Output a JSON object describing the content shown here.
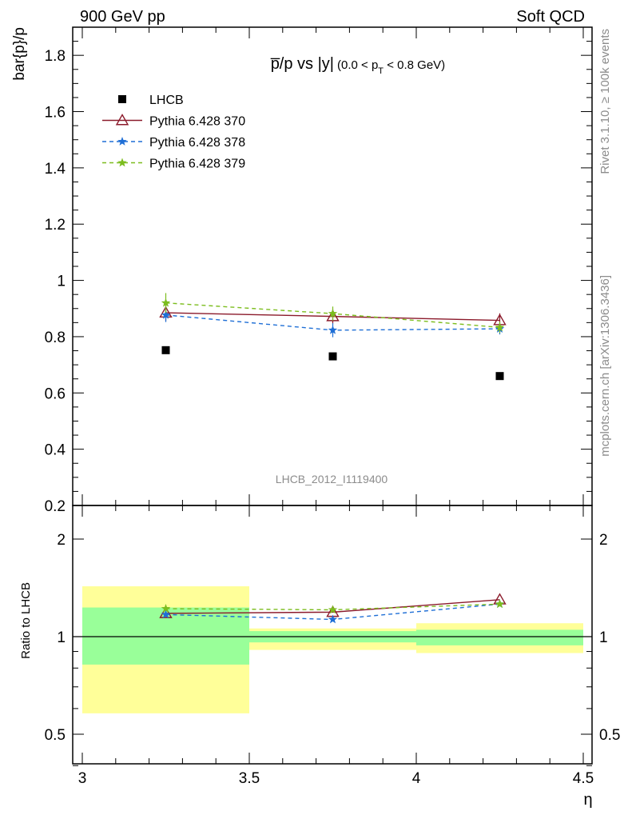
{
  "header": {
    "left": "900 GeV pp",
    "right": "Soft QCD"
  },
  "side_labels": {
    "rivet": "Rivet 3.1.10, ≥ 100k events",
    "mcplots": "mcplots.cern.ch [arXiv:1306.3436]"
  },
  "colors": {
    "data": "#000000",
    "py370": "#8b1a2b",
    "py378": "#1f6fd6",
    "py379": "#7cbd1e",
    "band_inner": "#99ff99",
    "band_outer": "#ffff99"
  },
  "chart_data": [
    {
      "type": "line",
      "title_main": "p̅/p vs |y|",
      "title_sub": "(0.0 < p",
      "title_sub_index": "T",
      "title_sub_end": " < 0.8 GeV)",
      "watermark": "LHCB_2012_I1119400",
      "ylabel": "bar{p}/p",
      "xlim": [
        3.0,
        4.5
      ],
      "ylim": [
        0.2,
        1.9
      ],
      "yticks": [
        0.2,
        0.4,
        0.6,
        0.8,
        1.0,
        1.2,
        1.4,
        1.6,
        1.8
      ],
      "ytick_labels": [
        "0.2",
        "0.4",
        "0.6",
        "0.8",
        "1",
        "1.2",
        "1.4",
        "1.6",
        "1.8"
      ],
      "x": [
        3.25,
        3.75,
        4.25
      ],
      "series": [
        {
          "key": "data",
          "name": "LHCB",
          "values": [
            0.752,
            0.73,
            0.66
          ],
          "marker": "square",
          "style": "none"
        },
        {
          "key": "py370",
          "name": "Pythia 6.428 370",
          "values": [
            0.885,
            0.872,
            0.858
          ],
          "errors": [
            0.03,
            0.025,
            0.025
          ],
          "marker": "triangle",
          "style": "solid"
        },
        {
          "key": "py378",
          "name": "Pythia 6.428 378",
          "values": [
            0.877,
            0.823,
            0.828
          ],
          "errors": [
            0.025,
            0.025,
            0.02
          ],
          "marker": "star",
          "style": "dashed"
        },
        {
          "key": "py379",
          "name": "Pythia 6.428 379",
          "values": [
            0.92,
            0.882,
            0.833
          ],
          "errors": [
            0.035,
            0.025,
            0.02
          ],
          "marker": "star",
          "style": "dashed"
        }
      ],
      "legend": "top-left"
    },
    {
      "type": "line",
      "ylabel": "Ratio to LHCB",
      "xlabel": "η",
      "xlim": [
        3.0,
        4.5
      ],
      "ylim": [
        0.35,
        2.3
      ],
      "yticks": [
        0.5,
        1.0,
        2.0
      ],
      "ytick_labels": [
        "0.5",
        "1",
        "2"
      ],
      "xticks": [
        3.0,
        3.5,
        4.0,
        4.5
      ],
      "xtick_labels": [
        "3",
        "3.5",
        "4",
        "4.5"
      ],
      "bands": [
        {
          "x0": 3.0,
          "x1": 3.5,
          "inner": [
            0.82,
            1.23
          ],
          "outer": [
            0.58,
            1.43
          ]
        },
        {
          "x0": 3.5,
          "x1": 4.0,
          "inner": [
            0.96,
            1.04
          ],
          "outer": [
            0.91,
            1.06
          ]
        },
        {
          "x0": 4.0,
          "x1": 4.5,
          "inner": [
            0.94,
            1.05
          ],
          "outer": [
            0.89,
            1.1
          ]
        }
      ],
      "x": [
        3.25,
        3.75,
        4.25
      ],
      "series": [
        {
          "key": "py370",
          "values": [
            1.18,
            1.19,
            1.3
          ],
          "marker": "triangle",
          "style": "solid"
        },
        {
          "key": "py378",
          "values": [
            1.17,
            1.13,
            1.26
          ],
          "marker": "star",
          "style": "dashed"
        },
        {
          "key": "py379",
          "values": [
            1.22,
            1.21,
            1.26
          ],
          "marker": "star",
          "style": "dashed"
        }
      ]
    }
  ]
}
